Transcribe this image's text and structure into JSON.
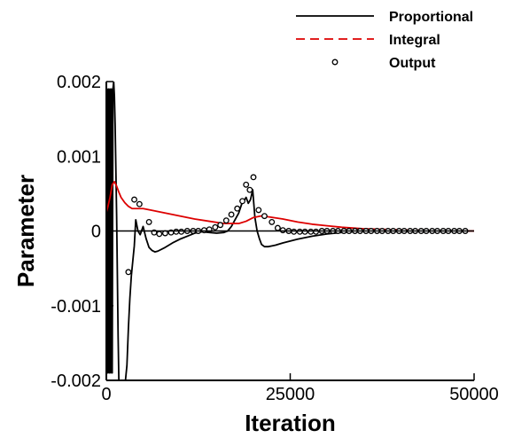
{
  "chart_data": {
    "type": "line",
    "title": "",
    "xlabel": "Iteration",
    "ylabel": "Parameter",
    "xlim": [
      0,
      50000
    ],
    "ylim": [
      -0.002,
      0.002
    ],
    "x_ticks": [
      0,
      25000,
      50000
    ],
    "x_tick_labels": [
      "0",
      "25000",
      "50000"
    ],
    "y_ticks": [
      -0.002,
      -0.001,
      0,
      0.001,
      0.002
    ],
    "y_tick_labels": [
      "-0.002",
      "-0.001",
      "0",
      "0.001",
      "0.002"
    ],
    "grid": false,
    "legend_position": "top-right",
    "series": [
      {
        "name": "Proportional",
        "style": "solid-line",
        "color": "#000000",
        "x": [
          0,
          100,
          200,
          300,
          400,
          500,
          600,
          700,
          800,
          900,
          1000,
          1100,
          1200,
          1300,
          1400,
          1500,
          1600,
          1700,
          1800,
          1900,
          2000,
          2200,
          2400,
          2600,
          2800,
          3000,
          3200,
          3400,
          3600,
          3800,
          4000,
          4300,
          4600,
          5000,
          5400,
          5800,
          6200,
          6600,
          7000,
          8000,
          9000,
          10000,
          11000,
          12000,
          13000,
          14000,
          15000,
          16000,
          16500,
          17000,
          17500,
          18000,
          18400,
          18700,
          19000,
          19300,
          19600,
          19900,
          20200,
          20500,
          20800,
          21100,
          21500,
          22000,
          22500,
          23000,
          24000,
          26000,
          28000,
          30000,
          32000,
          35000,
          38000,
          41000,
          44000,
          47000,
          50000
        ],
        "y": [
          0,
          0.0019,
          -0.0019,
          0.0019,
          -0.0019,
          0.0019,
          -0.0019,
          0.0019,
          -0.0019,
          0.0019,
          0.002,
          0.0018,
          0.0014,
          0.0008,
          0.0002,
          -0.0006,
          -0.0014,
          -0.002,
          -0.002,
          -0.002,
          -0.002,
          -0.002,
          -0.002,
          -0.002,
          -0.0018,
          -0.0013,
          -0.0009,
          -0.0006,
          -0.0004,
          -0.0002,
          0.00015,
          0.0,
          -5e-05,
          6e-05,
          -0.0001,
          -0.00022,
          -0.00026,
          -0.00028,
          -0.00027,
          -0.00022,
          -0.00016,
          -0.00011,
          -7e-05,
          -3e-05,
          -1e-05,
          -2e-05,
          -3e-05,
          -2e-05,
          0.0,
          6e-05,
          0.00015,
          0.00024,
          0.00036,
          0.0004,
          0.00045,
          0.00037,
          0.00042,
          0.00055,
          0.00018,
          0.0,
          -0.0001,
          -0.00018,
          -0.00021,
          -0.00021,
          -0.0002,
          -0.00019,
          -0.00016,
          -0.00011,
          -7e-05,
          -4e-05,
          -2e-05,
          0.0,
          1e-05,
          1e-05,
          0.0,
          0.0,
          0.0
        ]
      },
      {
        "name": "Integral",
        "style": "dashed-line",
        "color": "#dd0000",
        "x": [
          0,
          200,
          500,
          800,
          1100,
          1400,
          1700,
          2000,
          2500,
          3000,
          3500,
          4000,
          5000,
          6000,
          8000,
          10000,
          12000,
          14000,
          16000,
          18000,
          19000,
          20000,
          21000,
          22000,
          24000,
          26000,
          28000,
          30000,
          32000,
          35000,
          38000,
          42000,
          46000,
          50000
        ],
        "y": [
          0.00025,
          0.00032,
          0.00045,
          0.00062,
          0.00066,
          0.0006,
          0.00052,
          0.00045,
          0.00038,
          0.00033,
          0.0003,
          0.0003,
          0.0003,
          0.00028,
          0.00024,
          0.0002,
          0.00016,
          0.00013,
          0.0001,
          0.0001,
          0.00013,
          0.00018,
          0.0002,
          0.00019,
          0.00016,
          0.00012,
          9e-05,
          7e-05,
          5e-05,
          3e-05,
          2e-05,
          1e-05,
          0.0,
          0.0
        ]
      },
      {
        "name": "Output",
        "style": "open-circle-markers",
        "color": "#000000",
        "x": [
          3000,
          3800,
          4500,
          5800,
          6500,
          7200,
          8000,
          8800,
          9500,
          10200,
          11000,
          11800,
          12500,
          13300,
          14000,
          14800,
          15500,
          16300,
          17000,
          17800,
          18500,
          19000,
          19500,
          20000,
          20700,
          21500,
          22500,
          23300,
          24000,
          24800,
          25500,
          26300,
          27000,
          27800,
          28500,
          29300,
          30000,
          30800,
          31500,
          32300,
          33000,
          33800,
          34500,
          35300,
          36000,
          36800,
          37500,
          38300,
          39000,
          39800,
          40500,
          41300,
          42000,
          42800,
          43500,
          44300,
          45000,
          45800,
          46500,
          47300,
          48000,
          48800
        ],
        "y": [
          -0.00055,
          0.00042,
          0.00036,
          0.00012,
          -2e-05,
          -4e-05,
          -3e-05,
          -2e-05,
          -1e-05,
          -1e-05,
          0.0,
          0.0,
          0.0,
          1e-05,
          2e-05,
          5e-05,
          8e-05,
          0.00014,
          0.00022,
          0.0003,
          0.0004,
          0.00062,
          0.00055,
          0.00072,
          0.00028,
          0.0002,
          0.00012,
          4e-05,
          1e-05,
          0.0,
          -1e-05,
          -1e-05,
          -1e-05,
          -1e-05,
          -1e-05,
          0.0,
          0.0,
          0.0,
          0.0,
          0.0,
          0.0,
          0.0,
          0.0,
          0.0,
          0.0,
          0.0,
          0.0,
          0.0,
          0.0,
          0.0,
          0.0,
          0.0,
          0.0,
          0.0,
          0.0,
          0.0,
          0.0,
          0.0,
          0.0,
          0.0,
          0.0,
          0.0
        ]
      }
    ]
  }
}
